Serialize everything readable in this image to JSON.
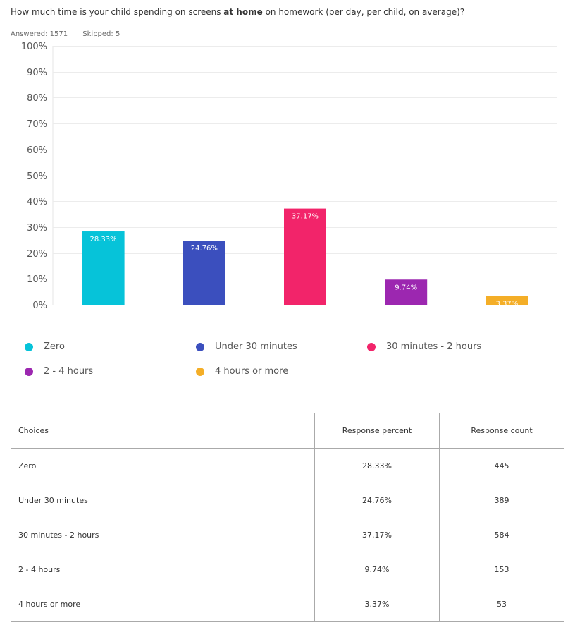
{
  "question": {
    "before": "How much time is your child spending on screens ",
    "bold": "at home",
    "after": " on homework (per day, per child, on average)?"
  },
  "stats": {
    "answered": "Answered: 1571",
    "skipped": "Skipped: 5"
  },
  "chart_data": {
    "type": "bar",
    "categories": [
      "Zero",
      "Under 30 minutes",
      "30 minutes - 2 hours",
      "2 - 4 hours",
      "4 hours or more"
    ],
    "values": [
      28.33,
      24.76,
      37.17,
      9.74,
      3.37
    ],
    "value_labels": [
      "28.33%",
      "24.76%",
      "37.17%",
      "9.74%",
      "3.37%"
    ],
    "colors": [
      "#06c3d9",
      "#3b4fbe",
      "#f2246a",
      "#9c27b0",
      "#f4ae27"
    ],
    "ylim": [
      0,
      100
    ],
    "yticks": [
      0,
      10,
      20,
      30,
      40,
      50,
      60,
      70,
      80,
      90,
      100
    ],
    "ytick_labels": [
      "0%",
      "10%",
      "20%",
      "30%",
      "40%",
      "50%",
      "60%",
      "70%",
      "80%",
      "90%",
      "100%"
    ],
    "grid": true,
    "legend_position": "bottom"
  },
  "table": {
    "headers": [
      "Choices",
      "Response percent",
      "Response count"
    ],
    "rows": [
      [
        "Zero",
        "28.33%",
        "445"
      ],
      [
        "Under 30 minutes",
        "24.76%",
        "389"
      ],
      [
        "30 minutes - 2 hours",
        "37.17%",
        "584"
      ],
      [
        "2 - 4 hours",
        "9.74%",
        "153"
      ],
      [
        "4 hours or more",
        "3.37%",
        "53"
      ]
    ]
  }
}
